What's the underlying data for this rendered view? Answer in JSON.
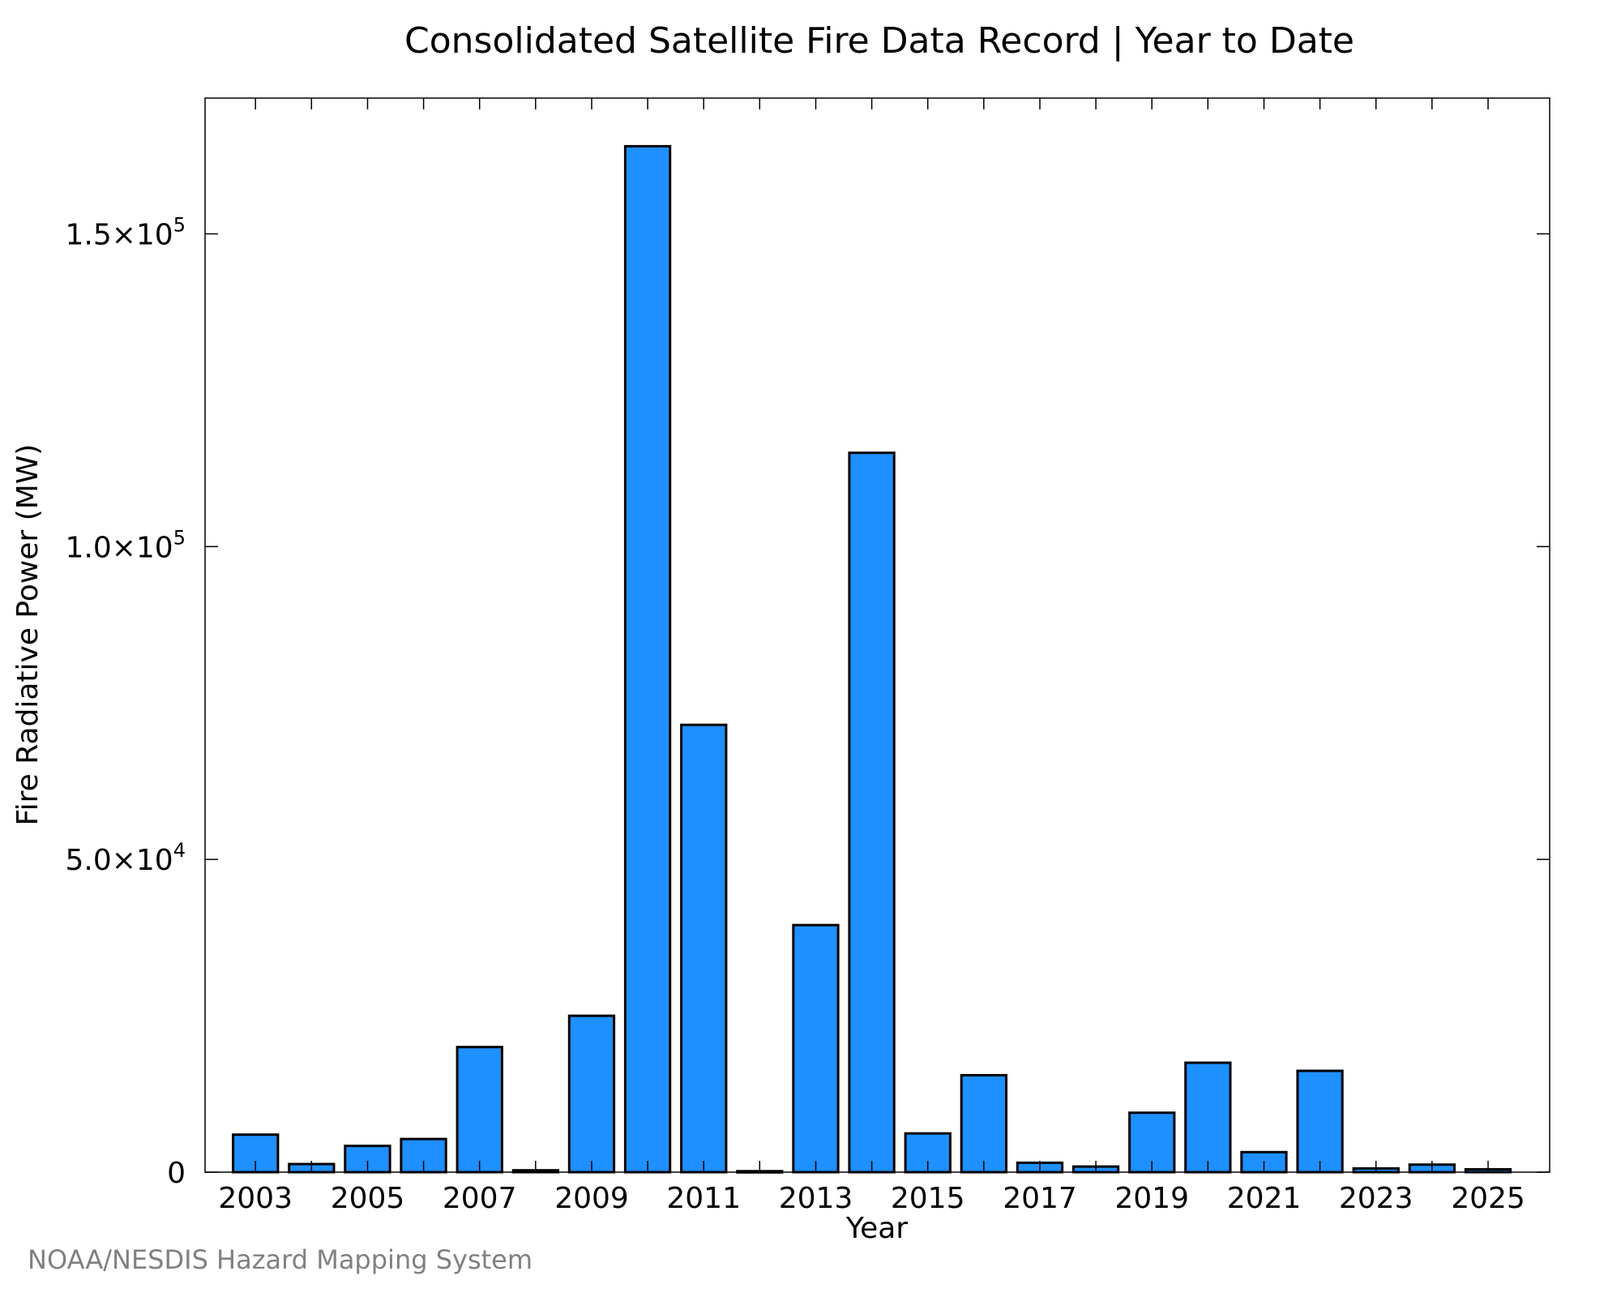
{
  "chart_data": {
    "type": "bar",
    "title": "Consolidated Satellite Fire Data Record | Year to Date",
    "xlabel": "Year",
    "ylabel": "Fire Radiative Power (MW)",
    "categories": [
      2003,
      2004,
      2005,
      2006,
      2007,
      2008,
      2009,
      2010,
      2011,
      2012,
      2013,
      2014,
      2015,
      2016,
      2017,
      2018,
      2019,
      2020,
      2021,
      2022,
      2023,
      2024,
      2025
    ],
    "values": [
      6000,
      1300,
      4200,
      5300,
      20000,
      300,
      25000,
      164000,
      71500,
      150,
      39500,
      115000,
      6200,
      15500,
      1500,
      900,
      9500,
      17500,
      3200,
      16200,
      600,
      1200,
      450
    ],
    "x_tick_labels": [
      "2003",
      "2005",
      "2007",
      "2009",
      "2011",
      "2013",
      "2015",
      "2017",
      "2019",
      "2021",
      "2023",
      "2025"
    ],
    "y_ticks": [
      {
        "value": 0,
        "mantissa": "0",
        "exponent": ""
      },
      {
        "value": 50000,
        "mantissa": "5.0×10",
        "exponent": "4"
      },
      {
        "value": 100000,
        "mantissa": "1.0×10",
        "exponent": "5"
      },
      {
        "value": 150000,
        "mantissa": "1.5×10",
        "exponent": "5"
      }
    ],
    "ylim": [
      0,
      171700
    ],
    "xlim": [
      2002.1,
      2026.1
    ],
    "grid": false,
    "legend": "none",
    "bar_color": "#1E90FF",
    "edge_color": "#000000"
  },
  "credit": "NOAA/NESDIS Hazard Mapping System"
}
